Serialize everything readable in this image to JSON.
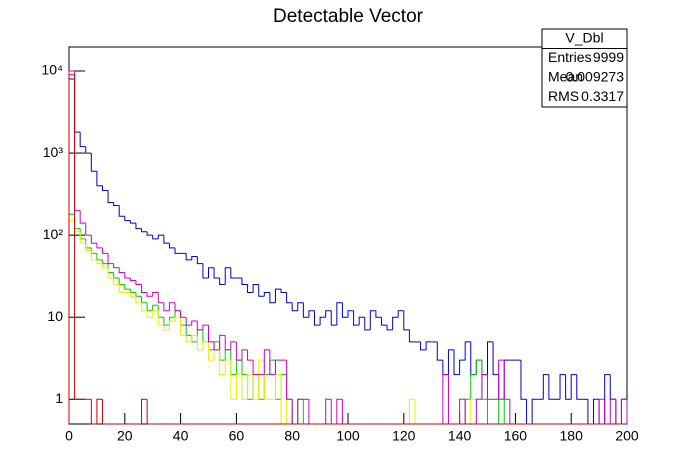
{
  "chart_data": {
    "type": "histogram",
    "title": "Detectable Vector",
    "log_y": true,
    "xlim": [
      0,
      200
    ],
    "xticks": [
      0,
      20,
      40,
      60,
      80,
      100,
      120,
      140,
      160,
      180,
      200
    ],
    "ylim": [
      0.5,
      19600
    ],
    "yticks": [
      1,
      10,
      {
        "value": 100,
        "label": "10²"
      },
      {
        "value": 1000,
        "label": "10³"
      },
      {
        "value": 10000,
        "label": "10⁴"
      }
    ],
    "bins": [
      0,
      2,
      4,
      6,
      8,
      10,
      12,
      14,
      16,
      18,
      20,
      22,
      24,
      26,
      28,
      30,
      32,
      34,
      36,
      38,
      40,
      42,
      44,
      46,
      48,
      50,
      52,
      54,
      56,
      58,
      60,
      62,
      64,
      66,
      68,
      70,
      72,
      74,
      76,
      78,
      80,
      82,
      84,
      86,
      88,
      90,
      92,
      94,
      96,
      98,
      100,
      102,
      104,
      106,
      108,
      110,
      112,
      114,
      116,
      118,
      120,
      122,
      124,
      126,
      128,
      130,
      132,
      134,
      136,
      138,
      140,
      142,
      144,
      146,
      148,
      150,
      152,
      154,
      156,
      158,
      160,
      162,
      164,
      166,
      168,
      170,
      172,
      174,
      176,
      178,
      180,
      182,
      184,
      186,
      188,
      190,
      192,
      194,
      196,
      198,
      200
    ],
    "series": [
      {
        "color": "#0000cc",
        "values": [
          8000,
          1800,
          1200,
          1000,
          600,
          400,
          350,
          250,
          230,
          170,
          150,
          140,
          120,
          110,
          100,
          90,
          100,
          80,
          70,
          60,
          60,
          50,
          55,
          45,
          30,
          40,
          30,
          25,
          40,
          30,
          30,
          25,
          20,
          25,
          18,
          20,
          15,
          22,
          20,
          15,
          12,
          15,
          10,
          12,
          8,
          10,
          12,
          8,
          15,
          10,
          12,
          8,
          10,
          7,
          12,
          10,
          8,
          7,
          10,
          12,
          7,
          5,
          5,
          4,
          5,
          5,
          3,
          2,
          4,
          2,
          3,
          5,
          2,
          3,
          2,
          5,
          2,
          1,
          3,
          3,
          3,
          1,
          0,
          1,
          1,
          2,
          1,
          1,
          2,
          1,
          2,
          1,
          1,
          0,
          1,
          0,
          2,
          1,
          0,
          1
        ]
      },
      {
        "color": "#00cc00",
        "values": [
          180,
          120,
          90,
          70,
          60,
          50,
          45,
          35,
          30,
          25,
          22,
          20,
          18,
          15,
          12,
          14,
          10,
          8,
          10,
          12,
          8,
          6,
          5,
          7,
          5,
          4,
          5,
          3,
          4,
          2,
          3,
          2,
          1,
          2,
          1,
          2,
          3,
          1,
          2,
          1,
          0,
          1,
          0,
          0,
          0,
          0,
          0,
          0,
          0,
          0,
          0,
          0,
          0,
          0,
          0,
          0,
          0,
          0,
          0,
          0,
          0,
          0,
          0,
          0,
          0,
          0,
          0,
          0,
          0,
          0,
          0,
          1,
          2,
          3,
          1,
          0,
          0,
          1,
          0,
          0,
          0,
          0,
          0,
          0,
          0,
          0,
          0,
          0,
          0,
          0,
          0,
          0,
          0,
          0,
          0,
          0,
          0,
          0,
          0,
          0
        ]
      },
      {
        "color": "#eeee00",
        "values": [
          150,
          110,
          80,
          65,
          50,
          45,
          40,
          30,
          25,
          20,
          20,
          18,
          15,
          12,
          10,
          12,
          8,
          7,
          9,
          10,
          6,
          5,
          6,
          4,
          5,
          3,
          4,
          2,
          3,
          1,
          2,
          1,
          2,
          1,
          3,
          1,
          1,
          2,
          0,
          1,
          0,
          0,
          0,
          0,
          0,
          0,
          0,
          0,
          0,
          0,
          0,
          0,
          0,
          0,
          0,
          0,
          0,
          0,
          0,
          0,
          0,
          1,
          0,
          0,
          0,
          0,
          0,
          0,
          0,
          0,
          0,
          0,
          1,
          0,
          0,
          0,
          0,
          0,
          0,
          0,
          0,
          0,
          0,
          0,
          0,
          0,
          0,
          0,
          0,
          0,
          0,
          0,
          0,
          0,
          0,
          0,
          0,
          0,
          0,
          0
        ]
      },
      {
        "color": "#cc00cc",
        "values": [
          10000,
          200,
          140,
          100,
          80,
          70,
          60,
          45,
          40,
          35,
          30,
          28,
          25,
          20,
          18,
          20,
          15,
          12,
          15,
          12,
          10,
          8,
          9,
          7,
          8,
          5,
          4,
          6,
          4,
          5,
          3,
          4,
          3,
          2,
          2,
          4,
          2,
          3,
          3,
          1,
          0,
          1,
          1,
          0,
          0,
          0,
          1,
          0,
          1,
          0,
          0,
          0,
          0,
          0,
          0,
          0,
          0,
          0,
          0,
          0,
          0,
          0,
          0,
          0,
          0,
          0,
          0,
          2,
          0,
          0,
          1,
          0,
          0,
          1,
          2,
          1,
          1,
          3,
          1,
          0,
          0,
          0,
          0,
          0,
          0,
          0,
          0,
          0,
          0,
          0,
          0,
          0,
          0,
          0,
          0,
          1,
          0,
          1,
          0,
          1
        ]
      },
      {
        "color": "#cc0000",
        "values": [
          9000,
          1,
          1,
          1,
          0,
          1,
          0,
          0,
          0,
          0,
          0,
          0,
          0,
          1,
          0,
          0,
          0,
          0,
          0,
          0,
          0,
          0,
          0,
          0,
          0,
          0,
          0,
          0,
          0,
          0,
          0,
          0,
          0,
          0,
          0,
          0,
          0,
          0,
          0,
          0,
          0,
          0,
          0,
          0,
          0,
          0,
          0,
          0,
          0,
          0,
          0,
          0,
          0,
          0,
          0,
          0,
          0,
          0,
          0,
          0,
          0,
          0,
          0,
          0,
          0,
          0,
          0,
          0,
          0,
          0,
          0,
          0,
          0,
          0,
          0,
          0,
          0,
          0,
          0,
          0,
          0,
          0,
          0,
          0,
          0,
          0,
          0,
          0,
          0,
          0,
          0,
          0,
          0,
          0,
          0,
          0,
          0,
          0,
          0,
          0
        ]
      }
    ],
    "stats": {
      "title": "V_Dbl",
      "rows": [
        {
          "label": "Entries",
          "value": 9999
        },
        {
          "label": "Mean",
          "value": 0.009273
        },
        {
          "label": "RMS",
          "value": 0.3317
        }
      ]
    }
  }
}
